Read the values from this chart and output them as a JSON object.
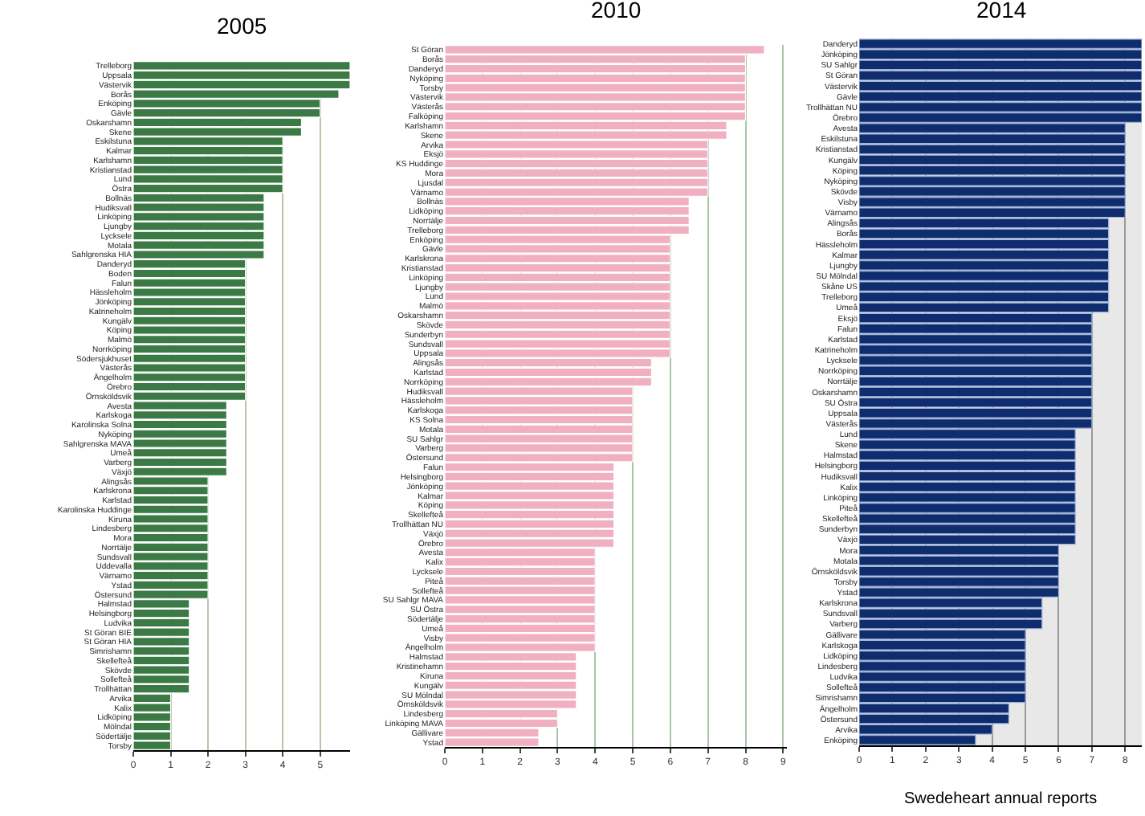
{
  "chart_data": [
    {
      "type": "bar",
      "orientation": "horizontal",
      "title": "2005",
      "color": "#3b7a45",
      "grid": "x",
      "xlim": [
        0,
        5.8
      ],
      "xticks": [
        0,
        1,
        2,
        3,
        4,
        5
      ],
      "categories": [
        "Trelleborg",
        "Uppsala",
        "Västervik",
        "Borås",
        "Enköping",
        "Gävle",
        "Oskarshamn",
        "Skene",
        "Eskilstuna",
        "Kalmar",
        "Karlshamn",
        "Kristianstad",
        "Lund",
        "Östra",
        "Bollnäs",
        "Hudiksvall",
        "Linköping",
        "Ljungby",
        "Lycksele",
        "Motala",
        "Sahlgrenska HIA",
        "Danderyd",
        "Boden",
        "Falun",
        "Hässleholm",
        "Jönköping",
        "Katrineholm",
        "Kungälv",
        "Köping",
        "Malmö",
        "Norrköping",
        "Södersjukhuset",
        "Västerås",
        "Ängelholm",
        "Örebro",
        "Örnsköldsvik",
        "Avesta",
        "Karlskoga",
        "Karolinska Solna",
        "Nyköping",
        "Sahlgrenska MAVA",
        "Umeå",
        "Varberg",
        "Växjö",
        "Alingsås",
        "Karlskrona",
        "Karlstad",
        "Karolinska Huddinge",
        "Kiruna",
        "Lindesberg",
        "Mora",
        "Norrtälje",
        "Sundsvall",
        "Uddevalla",
        "Värnamo",
        "Ystad",
        "Östersund",
        "Halmstad",
        "Helsingborg",
        "Ludvika",
        "St Göran BIE",
        "St Göran HIA",
        "Simrishamn",
        "Skellefteå",
        "Skövde",
        "Sollefteå",
        "Trollhättan",
        "Arvika",
        "Kalix",
        "Lidköping",
        "Mölndal",
        "Södertälje",
        "Torsby"
      ],
      "values": [
        5.8,
        5.8,
        5.8,
        5.5,
        5,
        5,
        4.5,
        4.5,
        4,
        4,
        4,
        4,
        4,
        4,
        3.5,
        3.5,
        3.5,
        3.5,
        3.5,
        3.5,
        3.5,
        3,
        3,
        3,
        3,
        3,
        3,
        3,
        3,
        3,
        3,
        3,
        3,
        3,
        3,
        3,
        2.5,
        2.5,
        2.5,
        2.5,
        2.5,
        2.5,
        2.5,
        2.5,
        2,
        2,
        2,
        2,
        2,
        2,
        2,
        2,
        2,
        2,
        2,
        2,
        2,
        1.5,
        1.5,
        1.5,
        1.5,
        1.5,
        1.5,
        1.5,
        1.5,
        1.5,
        1.5,
        1,
        1,
        1,
        1,
        1,
        1
      ]
    },
    {
      "type": "bar",
      "orientation": "horizontal",
      "title": "2010",
      "color": "#f1b0c1",
      "grid": "x",
      "xlim": [
        0,
        9.1
      ],
      "xticks": [
        0,
        1,
        2,
        3,
        4,
        5,
        6,
        7,
        8,
        9
      ],
      "categories": [
        "St Göran",
        "Borås",
        "Danderyd",
        "Nyköping",
        "Torsby",
        "Västervik",
        "Västerås",
        "Falköping",
        "Karlshamn",
        "Skene",
        "Arvika",
        "Eksjö",
        "KS Huddinge",
        "Mora",
        "Ljusdal",
        "Värnamo",
        "Bollnäs",
        "Lidköping",
        "Norrtälje",
        "Trelleborg",
        "Enköping",
        "Gävle",
        "Karlskrona",
        "Kristianstad",
        "Linköping",
        "Ljungby",
        "Lund",
        "Malmö",
        "Oskarshamn",
        "Skövde",
        "Sunderbyn",
        "Sundsvall",
        "Uppsala",
        "Alingsås",
        "Karlstad",
        "Norrköping",
        "Hudiksvall",
        "Hässleholm",
        "Karlskoga",
        "KS Solna",
        "Motala",
        "SU Sahlgr",
        "Varberg",
        "Östersund",
        "Falun",
        "Helsingborg",
        "Jönköping",
        "Kalmar",
        "Köping",
        "Skellefteå",
        "Trollhättan NU",
        "Växjö",
        "Örebro",
        "Avesta",
        "Kalix",
        "Lycksele",
        "Piteå",
        "Sollefteå",
        "SU Sahlgr MAVA",
        "SU Östra",
        "Södertälje",
        "Umeå",
        "Visby",
        "Ängelholm",
        "Halmstad",
        "Kristinehamn",
        "Kiruna",
        "Kungälv",
        "SU Mölndal",
        "Örnsköldsvik",
        "Lindesberg",
        "Linköping MAVA",
        "Gällivare",
        "Ystad"
      ],
      "values": [
        8.5,
        8,
        8,
        8,
        8,
        8,
        8,
        8,
        7.5,
        7.5,
        7,
        7,
        7,
        7,
        7,
        7,
        6.5,
        6.5,
        6.5,
        6.5,
        6,
        6,
        6,
        6,
        6,
        6,
        6,
        6,
        6,
        6,
        6,
        6,
        6,
        5.5,
        5.5,
        5.5,
        5,
        5,
        5,
        5,
        5,
        5,
        5,
        5,
        4.5,
        4.5,
        4.5,
        4.5,
        4.5,
        4.5,
        4.5,
        4.5,
        4.5,
        4,
        4,
        4,
        4,
        4,
        4,
        4,
        4,
        4,
        4,
        4,
        3.5,
        3.5,
        3.5,
        3.5,
        3.5,
        3.5,
        3,
        3,
        2.5,
        2.5
      ]
    },
    {
      "type": "bar",
      "orientation": "horizontal",
      "title": "2014",
      "color": "#0f2c6e",
      "grid": "x",
      "xlim": [
        0,
        8.5
      ],
      "xticks": [
        0,
        1,
        2,
        3,
        4,
        5,
        6,
        7,
        8
      ],
      "annotations": [
        "Swedeheart annual reports"
      ],
      "categories": [
        "Danderyd",
        "Jönköping",
        "SU Sahlgr",
        "St Göran",
        "Västervik",
        "Gävle",
        "Trollhättan NU",
        "Örebro",
        "Avesta",
        "Eskilstuna",
        "Kristianstad",
        "Kungälv",
        "Köping",
        "Nyköping",
        "Skövde",
        "Visby",
        "Värnamo",
        "Alingsås",
        "Borås",
        "Hässleholm",
        "Kalmar",
        "Ljungby",
        "SU Mölndal",
        "Skåne US",
        "Trelleborg",
        "Umeå",
        "Eksjö",
        "Falun",
        "Karlstad",
        "Katrineholm",
        "Lycksele",
        "Norrköping",
        "Norrtälje",
        "Oskarshamn",
        "SU Östra",
        "Uppsala",
        "Västerås",
        "Lund",
        "Skene",
        "Halmstad",
        "Helsingborg",
        "Hudiksvall",
        "Kalix",
        "Linköping",
        "Piteå",
        "Skellefteå",
        "Sunderbyn",
        "Växjö",
        "Mora",
        "Motala",
        "Örnsköldsvik",
        "Torsby",
        "Ystad",
        "Karlskrona",
        "Sundsvall",
        "Varberg",
        "Gällivare",
        "Karlskoga",
        "Lidköping",
        "Lindesberg",
        "Ludvika",
        "Sollefteå",
        "Simrishamn",
        "Ängelholm",
        "Östersund",
        "Arvika",
        "Enköping"
      ],
      "values": [
        8.5,
        8.5,
        8.5,
        8.5,
        8.5,
        8.5,
        8.5,
        8.5,
        8,
        8,
        8,
        8,
        8,
        8,
        8,
        8,
        8,
        7.5,
        7.5,
        7.5,
        7.5,
        7.5,
        7.5,
        7.5,
        7.5,
        7.5,
        7,
        7,
        7,
        7,
        7,
        7,
        7,
        7,
        7,
        7,
        7,
        6.5,
        6.5,
        6.5,
        6.5,
        6.5,
        6.5,
        6.5,
        6.5,
        6.5,
        6.5,
        6.5,
        6,
        6,
        6,
        6,
        6,
        5.5,
        5.5,
        5.5,
        5,
        5,
        5,
        5,
        5,
        5,
        5,
        4.5,
        4.5,
        4,
        3.5
      ]
    }
  ]
}
